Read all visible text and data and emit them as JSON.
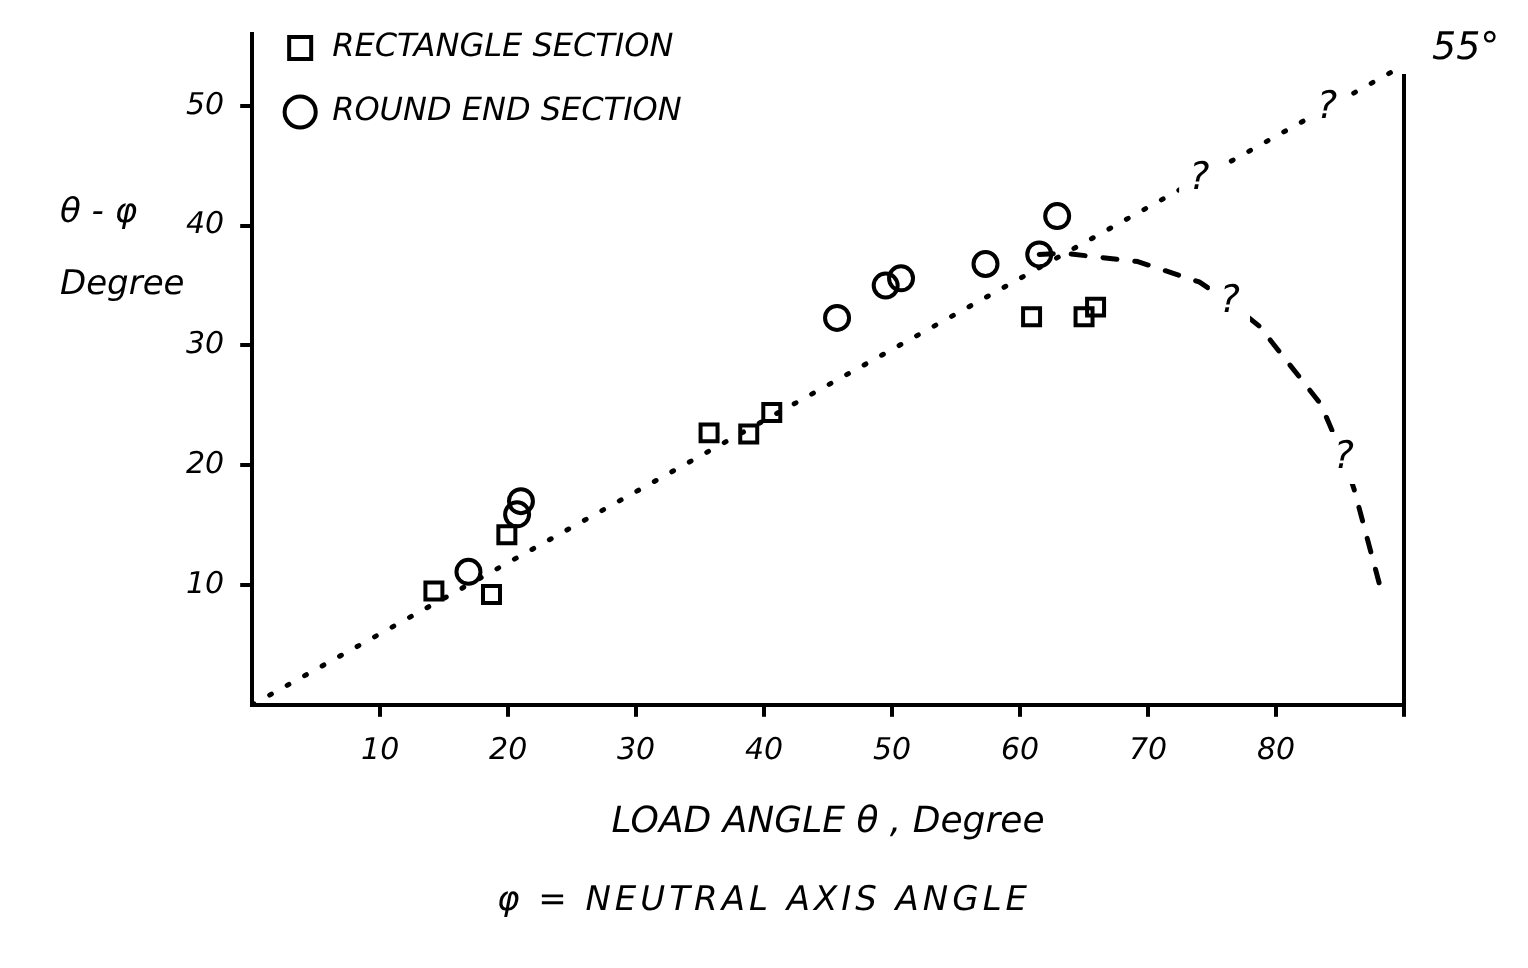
{
  "chart_data": {
    "type": "scatter",
    "xlabel": "LOAD ANGLE θ , Degree",
    "ylabel": "θ - φ Degree",
    "xlim": [
      0,
      90
    ],
    "ylim": [
      0,
      56
    ],
    "xticks": [
      10,
      20,
      30,
      40,
      50,
      60,
      70,
      80,
      {
        "value": 90,
        "label": null
      }
    ],
    "yticks": [
      10,
      20,
      30,
      40,
      50
    ],
    "grid": false,
    "legend": "top left",
    "series": [
      {
        "name": "RECTANGLE SECTION",
        "color": "#000000",
        "marker": "square",
        "x": [
          14.2,
          18.7,
          19.9,
          35.7,
          38.8,
          40.6,
          60.9,
          65.0,
          65.9
        ],
        "values": [
          9.5,
          9.2,
          14.2,
          22.7,
          22.6,
          24.4,
          32.4,
          32.4,
          33.2
        ]
      },
      {
        "name": "ROUND END SECTION",
        "color": "#000000",
        "marker": "circle",
        "x": [
          16.9,
          20.7,
          21.0,
          45.7,
          49.5,
          50.7,
          57.3,
          61.5,
          62.9
        ],
        "values": [
          11.1,
          15.9,
          17.0,
          32.3,
          35.0,
          35.6,
          36.8,
          37.6,
          40.8
        ]
      },
      {
        "type": "line",
        "color": "#000000",
        "marker": "none",
        "line_style": "dotted",
        "x": [
          0,
          90
        ],
        "values": [
          0,
          53.4
        ]
      },
      {
        "type": "line",
        "color": "#000000",
        "marker": "none",
        "line_style": "dashed",
        "x": [
          61.5,
          63.4,
          69.2,
          74.0,
          76.4,
          78.7,
          83.5,
          85.3,
          86.1,
          88.2
        ],
        "values": [
          37.6,
          37.7,
          37.0,
          35.3,
          33.6,
          31.6,
          25.1,
          20.6,
          18.0,
          9.6
        ]
      }
    ],
    "ref_lines": [
      {
        "axis": "x",
        "value": 90,
        "color": "#000000"
      }
    ],
    "annotations": [
      {
        "text": "55°",
        "x": 90,
        "y": 53.4
      },
      {
        "text": "?",
        "x": 74,
        "y": 43.9
      },
      {
        "text": "?",
        "x": 84,
        "y": 49.8
      },
      {
        "text": "?",
        "x": 76.4,
        "y": 33.6
      },
      {
        "text": "?",
        "x": 85.3,
        "y": 20.6
      },
      "φ = NEUTRAL AXIS ANGLE"
    ]
  }
}
